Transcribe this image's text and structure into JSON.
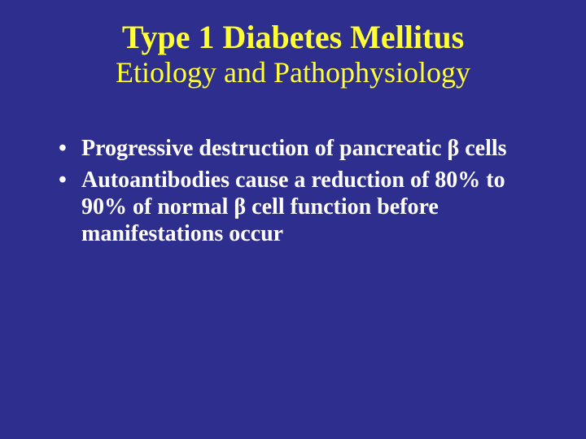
{
  "background_color": "#2e2e8f",
  "title_color": "#ffff33",
  "body_text_color": "#ffffff",
  "title_fontsize": 40,
  "subtitle_fontsize": 36,
  "bullet_fontsize": 28,
  "font_family": "Times New Roman",
  "title": "Type 1 Diabetes Mellitus",
  "subtitle": "Etiology and Pathophysiology",
  "bullets": [
    "Progressive destruction of pancreatic β cells",
    "Autoantibodies cause a reduction of 80% to 90% of normal β cell function before manifestations occur"
  ]
}
